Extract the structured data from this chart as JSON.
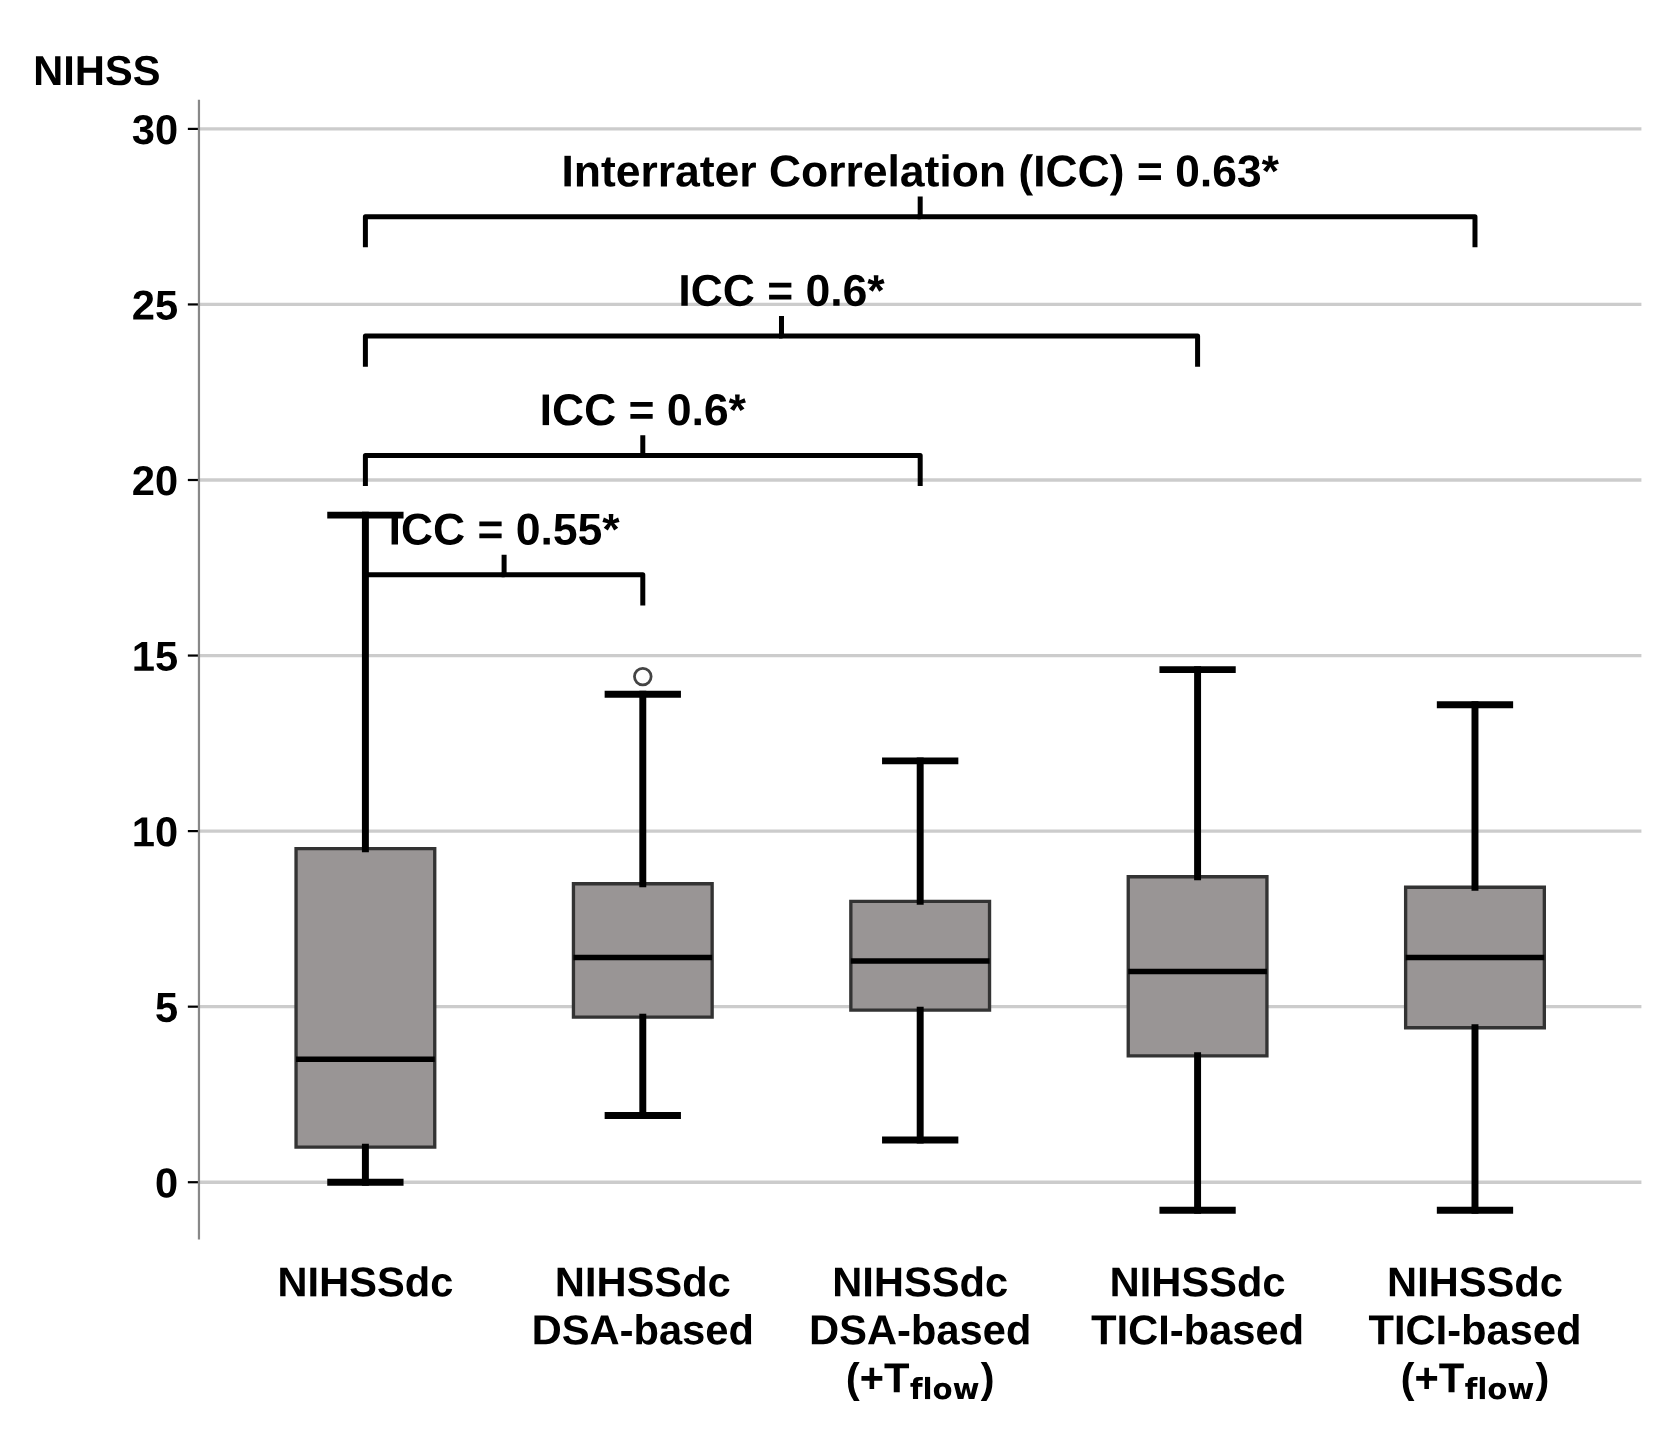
{
  "chart_data": {
    "type": "box",
    "ylabel": "NIHSS",
    "categories": [
      "NIHSSdc",
      "NIHSSdc\nDSA-based",
      "NIHSSdc\nDSA-based\n(+T$_{flow}$)",
      "NIHSSdc\nTICI-based",
      "NIHSSdc\nTICI-based\n(+T$_{flow}$)"
    ],
    "color": "#999595",
    "boxes": [
      {
        "low": 0,
        "q1": 1,
        "median": 3.5,
        "q3": 9.5,
        "high": 19
      },
      {
        "low": 1.9,
        "q1": 4.7,
        "median": 6.4,
        "q3": 8.5,
        "high": 13.9,
        "outliers": [
          14.4
        ]
      },
      {
        "low": 1.2,
        "q1": 4.9,
        "median": 6.3,
        "q3": 8.0,
        "high": 12.0
      },
      {
        "low": -0.8,
        "q1": 3.6,
        "median": 6.0,
        "q3": 8.7,
        "high": 14.6
      },
      {
        "low": -0.8,
        "q1": 4.4,
        "median": 6.4,
        "q3": 8.4,
        "high": 13.6
      }
    ],
    "annotations": [
      "ICC = 0.55*",
      "ICC = 0.6*",
      "ICC = 0.6*",
      "Interrater Correlation (ICC) = 0.63*"
    ],
    "ylim": [
      -1.6,
      30.8
    ],
    "yticks": [
      0,
      5,
      10,
      15,
      20,
      25,
      30
    ],
    "grid": "y"
  }
}
